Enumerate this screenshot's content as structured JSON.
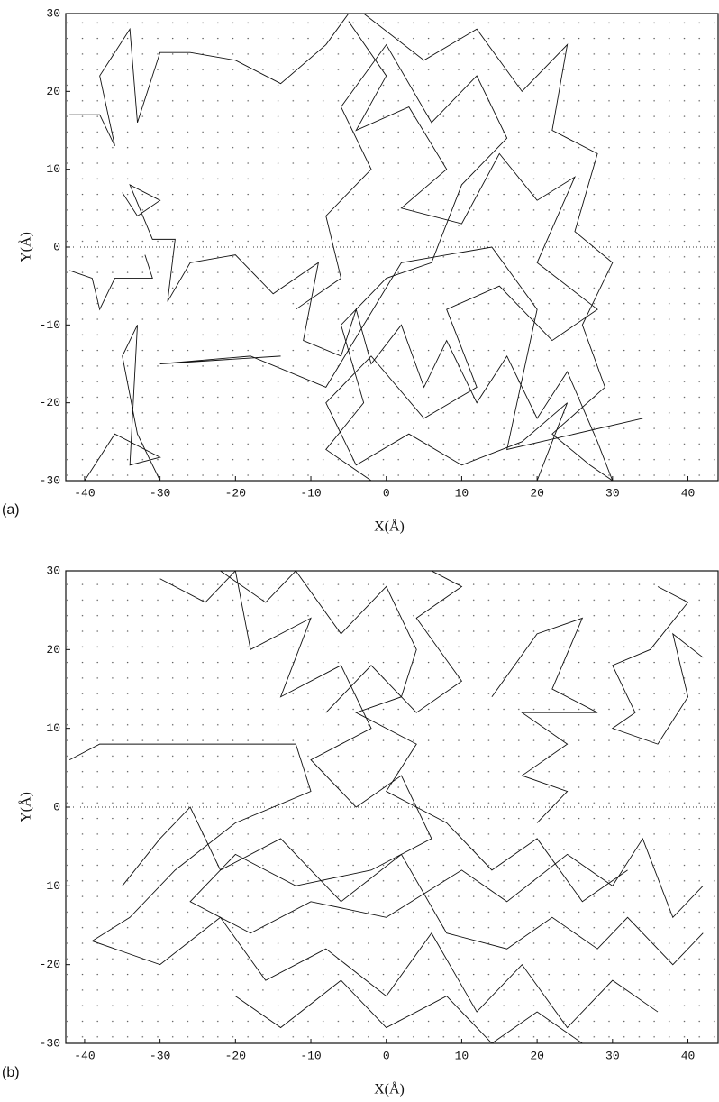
{
  "chart_data": [
    {
      "type": "line",
      "label": "(a)",
      "xlabel": "X(Å)",
      "ylabel": "Y(Å)",
      "color": "#111111",
      "xlim": [
        -42.5,
        44
      ],
      "ylim": [
        -30,
        30
      ],
      "xticks": [
        -40,
        -30,
        -20,
        -10,
        0,
        10,
        20,
        30,
        40
      ],
      "yticks": [
        -30,
        -20,
        -10,
        0,
        10,
        20,
        30
      ],
      "zero_line": true,
      "series": [
        {
          "x": [
            -42,
            -38,
            -36,
            -38,
            -34,
            -33,
            -30,
            -26,
            -20,
            -14,
            -8,
            -5
          ],
          "y": [
            17,
            17,
            13,
            22,
            28,
            16,
            25,
            25,
            24,
            21,
            26,
            30
          ]
        },
        {
          "x": [
            -35,
            -33,
            -30,
            -34,
            -31,
            -28,
            -29,
            -26,
            -20,
            -15,
            -9,
            -11,
            -6,
            -4,
            -2,
            2,
            5,
            8,
            12,
            16,
            20,
            24,
            28,
            30
          ],
          "y": [
            7,
            4,
            6,
            8,
            1,
            1,
            -7,
            -2,
            -1,
            -6,
            -2,
            -12,
            -14,
            -8,
            -15,
            -10,
            -18,
            -12,
            -20,
            -14,
            -22,
            -16,
            -25,
            -30
          ]
        },
        {
          "x": [
            -42,
            -39,
            -38,
            -36,
            -31,
            -32
          ],
          "y": [
            -3,
            -4,
            -8,
            -4,
            -4,
            -1
          ]
        },
        {
          "x": [
            -40,
            -36,
            -30,
            -34,
            -33,
            -35,
            -33,
            -30
          ],
          "y": [
            -30,
            -24,
            -27,
            -28,
            -10,
            -14,
            -24,
            -30
          ]
        },
        {
          "x": [
            -5,
            0,
            -4,
            3,
            8,
            2,
            10,
            15,
            20,
            25,
            20,
            28,
            22,
            15,
            8,
            12,
            5,
            -2,
            -8,
            -4,
            3,
            10,
            18,
            24,
            20
          ],
          "y": [
            29,
            22,
            15,
            18,
            10,
            5,
            3,
            12,
            6,
            9,
            -2,
            -8,
            -12,
            -5,
            -8,
            -18,
            -22,
            -14,
            -20,
            -28,
            -24,
            -28,
            -25,
            -20,
            -30
          ]
        },
        {
          "x": [
            -3,
            5,
            12,
            18,
            24,
            22,
            28,
            25,
            30,
            26,
            29,
            22,
            27,
            30
          ],
          "y": [
            30,
            24,
            28,
            20,
            26,
            15,
            12,
            2,
            -2,
            -10,
            -18,
            -24,
            -28,
            -30
          ]
        },
        {
          "x": [
            -12,
            -6,
            -8,
            -2,
            -6,
            0,
            6,
            12,
            16,
            10,
            6,
            0,
            -6,
            -3,
            -8,
            -2
          ],
          "y": [
            -8,
            -4,
            4,
            10,
            18,
            26,
            16,
            22,
            14,
            8,
            -2,
            -4,
            -10,
            -20,
            -26,
            -30
          ]
        },
        {
          "x": [
            -14,
            -30,
            -18,
            -8,
            2,
            14,
            20,
            16,
            34
          ],
          "y": [
            -14,
            -15,
            -14,
            -18,
            -2,
            0,
            -8,
            -26,
            -22
          ]
        }
      ]
    },
    {
      "type": "line",
      "label": "(b)",
      "xlabel": "X(Å)",
      "ylabel": "Y(Å)",
      "color": "#111111",
      "xlim": [
        -42.5,
        44
      ],
      "ylim": [
        -30,
        30
      ],
      "xticks": [
        -40,
        -30,
        -20,
        -10,
        0,
        10,
        20,
        30,
        40
      ],
      "yticks": [
        -30,
        -20,
        -10,
        0,
        10,
        20,
        30
      ],
      "zero_line": true,
      "series": [
        {
          "x": [
            -42,
            -38,
            -28,
            -15,
            -12,
            -10,
            -20,
            -28,
            -34,
            -39,
            -30,
            -22,
            -16,
            -8,
            0,
            6,
            12,
            18,
            24,
            30,
            36
          ],
          "y": [
            6,
            8,
            8,
            8,
            8,
            2,
            -2,
            -8,
            -14,
            -17,
            -20,
            -14,
            -22,
            -18,
            -24,
            -16,
            -26,
            -20,
            -28,
            -22,
            -26
          ]
        },
        {
          "x": [
            -30,
            -24,
            -20,
            -18,
            -10,
            -14,
            -6,
            -2,
            -10,
            -4,
            2,
            6,
            -2,
            -12,
            -20,
            -26,
            -18,
            -10,
            0,
            10,
            16,
            24,
            30,
            34,
            38,
            42
          ],
          "y": [
            29,
            26,
            30,
            20,
            24,
            14,
            18,
            10,
            6,
            0,
            4,
            -4,
            -8,
            -10,
            -6,
            -12,
            -16,
            -12,
            -14,
            -8,
            -12,
            -6,
            -10,
            -4,
            -14,
            -10
          ]
        },
        {
          "x": [
            -22,
            -16,
            -12,
            -6,
            0,
            4,
            2,
            -4,
            4,
            0,
            8,
            14,
            20,
            26,
            32
          ],
          "y": [
            30,
            26,
            30,
            22,
            28,
            20,
            14,
            12,
            8,
            2,
            -2,
            -8,
            -4,
            -12,
            -8
          ]
        },
        {
          "x": [
            36,
            40,
            35,
            30,
            33,
            30,
            36,
            40,
            38,
            42
          ],
          "y": [
            28,
            26,
            20,
            18,
            12,
            10,
            8,
            14,
            22,
            19
          ]
        },
        {
          "x": [
            14,
            20,
            26,
            22,
            28,
            18,
            24,
            18,
            24,
            20
          ],
          "y": [
            14,
            22,
            24,
            15,
            12,
            12,
            8,
            4,
            2,
            -2
          ]
        },
        {
          "x": [
            -35,
            -30,
            -26,
            -22,
            -14,
            -6,
            2,
            8,
            16,
            22,
            28,
            32,
            38,
            42
          ],
          "y": [
            -10,
            -4,
            0,
            -8,
            -4,
            -12,
            -6,
            -16,
            -18,
            -14,
            -18,
            -14,
            -20,
            -16
          ]
        },
        {
          "x": [
            -20,
            -14,
            -6,
            0,
            8,
            14,
            20,
            26
          ],
          "y": [
            -24,
            -28,
            -22,
            -28,
            -24,
            -30,
            -26,
            -30
          ]
        },
        {
          "x": [
            -8,
            -2,
            4,
            10,
            4,
            10,
            6
          ],
          "y": [
            12,
            18,
            12,
            16,
            24,
            28,
            30
          ]
        }
      ]
    }
  ]
}
